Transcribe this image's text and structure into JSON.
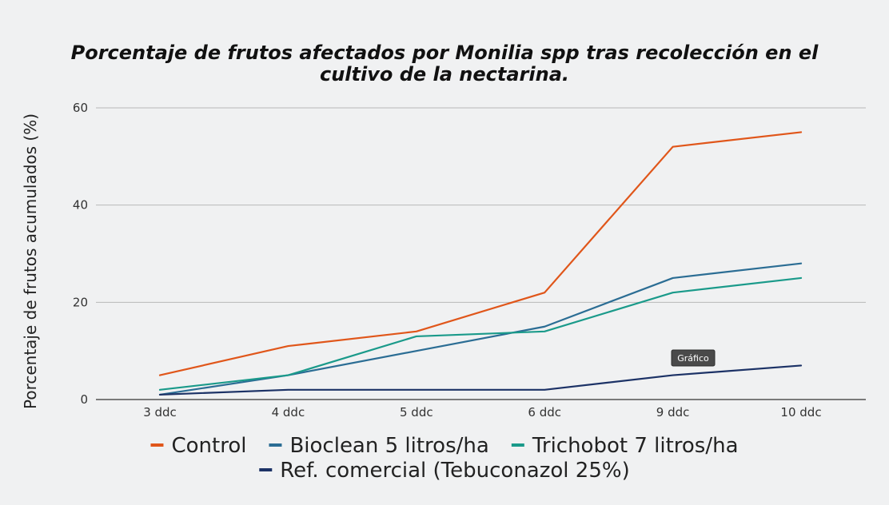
{
  "chart_data": {
    "type": "line",
    "title": "Porcentaje de frutos afectados por Monilia spp tras recolección en el cultivo de la nectarina.",
    "title_lines": [
      "Porcentaje de frutos afectados por Monilia spp tras recolección en el",
      "cultivo de la nectarina."
    ],
    "ylabel": "Porcentaje de frutos acumulados (%)",
    "xlabel": "",
    "categories": [
      "3 ddc",
      "4 ddc",
      "5 ddc",
      "6 ddc",
      "9 ddc",
      "10 ddc"
    ],
    "ylim": [
      0,
      60
    ],
    "yticks": [
      0,
      20,
      40,
      60
    ],
    "grid": true,
    "legend_position": "bottom",
    "series": [
      {
        "name": "Control",
        "color": "#e0561a",
        "values": [
          5,
          11,
          14,
          22,
          52,
          55
        ]
      },
      {
        "name": "Bioclean 5 litros/ha",
        "color": "#2b6d94",
        "values": [
          1,
          5,
          10,
          15,
          25,
          28
        ]
      },
      {
        "name": "Trichobot 7 litros/ha",
        "color": "#1a9a8a",
        "values": [
          2,
          5,
          13,
          14,
          22,
          25
        ]
      },
      {
        "name": "Ref. comercial (Tebuconazol 25%)",
        "color": "#1c3266",
        "values": [
          1,
          2,
          2,
          2,
          5,
          7
        ]
      }
    ]
  },
  "tooltip": {
    "label": "Gráfico"
  }
}
